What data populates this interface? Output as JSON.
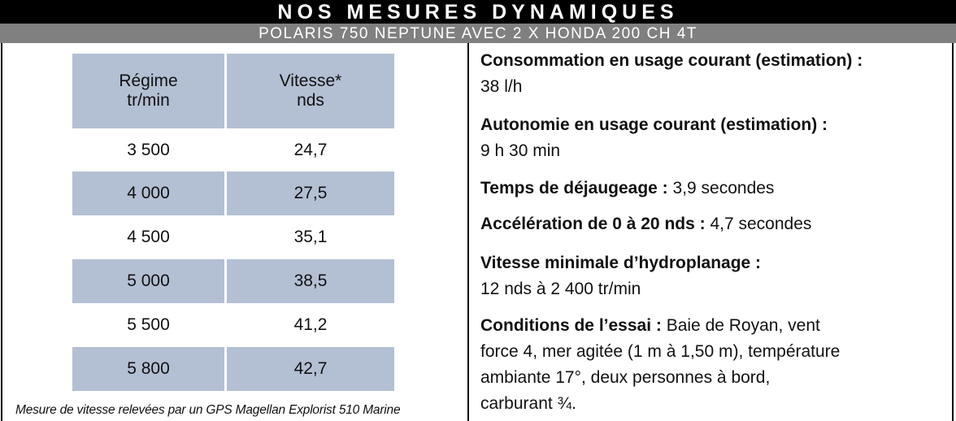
{
  "header": {
    "title": "NOS MESURES DYNAMIQUES",
    "subtitle": "POLARIS 750 NEPTUNE AVEC 2 X HONDA 200 CH 4T"
  },
  "table": {
    "columns": [
      {
        "line1": "Régime",
        "line2": "tr/min"
      },
      {
        "line1": "Vitesse*",
        "line2": "nds"
      }
    ],
    "rows": [
      {
        "regime": "3 500",
        "vitesse": "24,7"
      },
      {
        "regime": "4 000",
        "vitesse": "27,5"
      },
      {
        "regime": "4 500",
        "vitesse": "35,1"
      },
      {
        "regime": "5 000",
        "vitesse": "38,5"
      },
      {
        "regime": "5 500",
        "vitesse": "41,2"
      },
      {
        "regime": "5 800",
        "vitesse": "42,7"
      }
    ],
    "footnote": "Mesure de vitesse relevées par un GPS Magellan Explorist 510 Marine"
  },
  "info": {
    "consommation": {
      "label": "Consommation en usage courant (estimation) :",
      "value": "38 l/h"
    },
    "autonomie": {
      "label": "Autonomie en usage courant (estimation)  :",
      "value": "9 h 30 min"
    },
    "dejaugeage": {
      "label": "Temps de déjaugeage :",
      "value": " 3,9 secondes"
    },
    "acceleration": {
      "label": "Accélération de 0 à 20 nds :",
      "value": " 4,7 secondes"
    },
    "vitesse_min": {
      "label": "Vitesse minimale d’hydroplanage :",
      "value": "12 nds à 2 400 tr/min"
    },
    "conditions": {
      "label": "Conditions de l’essai :",
      "line1": " Baie de Royan, vent",
      "line2": "force 4, mer agitée (1 m à 1,50 m), température",
      "line3": "ambiante 17°, deux personnes à bord,",
      "line4": "carburant ¾."
    }
  },
  "colors": {
    "shade": "#b3bfd3",
    "header_bg": "#000000",
    "subheader_bg": "#808080"
  }
}
